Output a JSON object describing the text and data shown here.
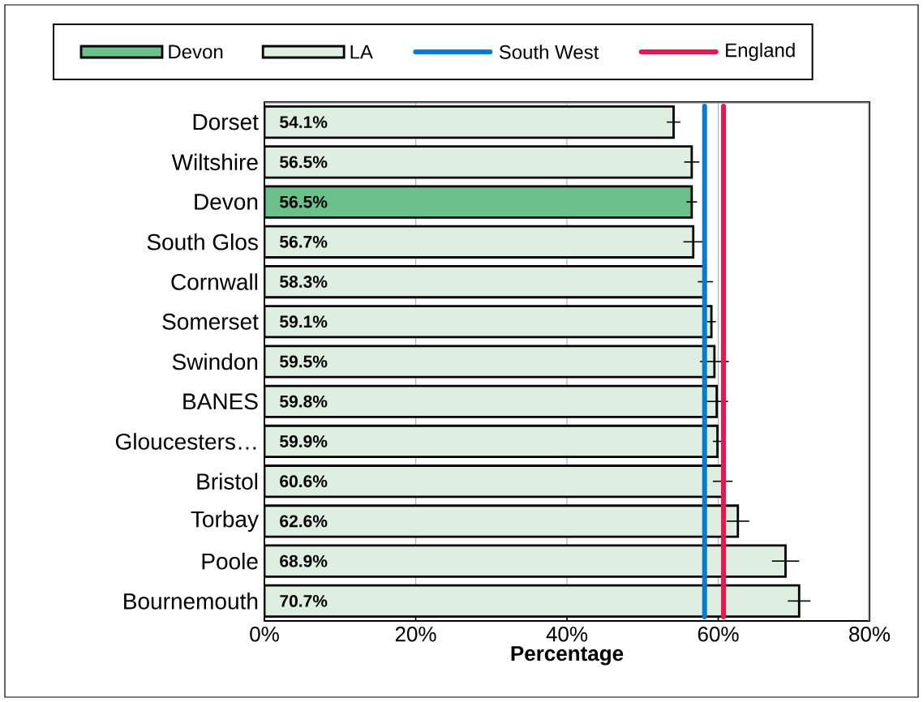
{
  "chart_data": {
    "type": "bar",
    "orientation": "horizontal",
    "xlabel": "Percentage",
    "categories": [
      "Dorset",
      "Wiltshire",
      "Devon",
      "South Glos",
      "Cornwall",
      "Somerset",
      "Swindon",
      "BANES",
      "Gloucesters…",
      "Bristol",
      "Torbay",
      "Poole",
      "Bournemouth"
    ],
    "series": [
      {
        "name": "Devon",
        "color": "#6cc08b",
        "values": [
          null,
          null,
          56.5,
          null,
          null,
          null,
          null,
          null,
          null,
          null,
          null,
          null,
          null
        ],
        "errors": [
          null,
          null,
          0.7,
          null,
          null,
          null,
          null,
          null,
          null,
          null,
          null,
          null,
          null
        ],
        "value_labels": [
          null,
          null,
          "56.5%",
          null,
          null,
          null,
          null,
          null,
          null,
          null,
          null,
          null,
          null
        ]
      },
      {
        "name": "LA",
        "color": "#deefe2",
        "values": [
          54.1,
          56.5,
          null,
          56.7,
          58.3,
          59.1,
          59.5,
          59.8,
          59.9,
          60.6,
          62.6,
          68.9,
          70.7
        ],
        "errors": [
          0.9,
          1.0,
          null,
          1.3,
          1.0,
          0.6,
          1.9,
          1.5,
          0.6,
          1.3,
          1.5,
          1.8,
          1.5
        ],
        "value_labels": [
          "54.1%",
          "56.5%",
          null,
          "56.7%",
          "58.3%",
          "59.1%",
          "59.5%",
          "59.8%",
          "59.9%",
          "60.6%",
          "62.6%",
          "68.9%",
          "70.7%"
        ]
      }
    ],
    "ref_lines": [
      {
        "axis": "x",
        "value": 58.2,
        "label": "South West",
        "color": "#0a7acb"
      },
      {
        "axis": "x",
        "value": 60.7,
        "label": "England",
        "color": "#e8174f"
      }
    ],
    "xlim": [
      0,
      80
    ],
    "xticks": [
      {
        "value": 0,
        "label": "0%"
      },
      {
        "value": 20,
        "label": "20%"
      },
      {
        "value": 40,
        "label": "40%"
      },
      {
        "value": 60,
        "label": "60%"
      },
      {
        "value": 80,
        "label": "80%"
      }
    ],
    "grid": "x",
    "legend": "top"
  }
}
